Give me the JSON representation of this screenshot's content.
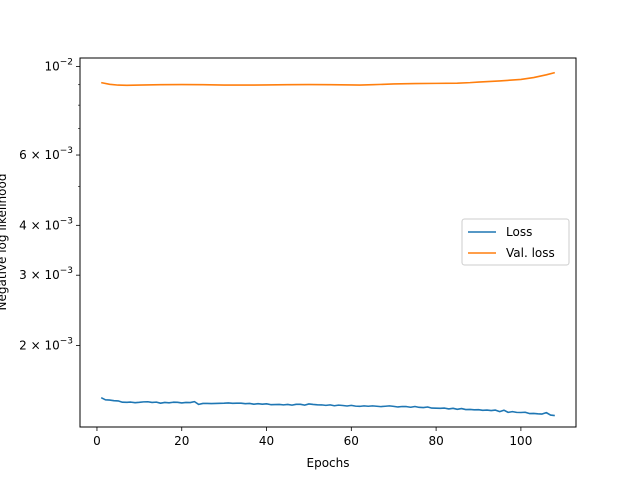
{
  "chart_data": {
    "type": "line",
    "title": "",
    "xlabel": "Epochs",
    "ylabel": "Negative log likelihood",
    "yscale": "log",
    "xlim": [
      -4,
      113
    ],
    "ylim": [
      0.00125,
      0.0105
    ],
    "grid": false,
    "legend_position": "center-right",
    "x_ticks": [
      {
        "value": 0,
        "label": "0"
      },
      {
        "value": 20,
        "label": "20"
      },
      {
        "value": 40,
        "label": "40"
      },
      {
        "value": 60,
        "label": "60"
      },
      {
        "value": 80,
        "label": "80"
      },
      {
        "value": 100,
        "label": "100"
      }
    ],
    "y_ticks": [
      {
        "value": 0.01,
        "mantissa": "10",
        "exponent": "−2"
      },
      {
        "value": 0.006,
        "mantissa": "6 × 10",
        "exponent": "−3"
      },
      {
        "value": 0.004,
        "mantissa": "4 × 10",
        "exponent": "−3"
      },
      {
        "value": 0.003,
        "mantissa": "3 × 10",
        "exponent": "−3"
      },
      {
        "value": 0.002,
        "mantissa": "2 × 10",
        "exponent": "−3"
      }
    ],
    "y_minor_ticks": [
      0.005,
      0.007,
      0.008,
      0.009
    ],
    "series": [
      {
        "name": "Loss",
        "color": "#1f77b4",
        "x": [
          1,
          2,
          3,
          4,
          5,
          6,
          7,
          8,
          9,
          10,
          11,
          12,
          13,
          14,
          15,
          16,
          17,
          18,
          19,
          20,
          21,
          22,
          23,
          24,
          25,
          26,
          27,
          28,
          29,
          30,
          31,
          32,
          33,
          34,
          35,
          36,
          37,
          38,
          39,
          40,
          41,
          42,
          43,
          44,
          45,
          46,
          47,
          48,
          49,
          50,
          51,
          52,
          53,
          54,
          55,
          56,
          57,
          58,
          59,
          60,
          61,
          62,
          63,
          64,
          65,
          66,
          67,
          68,
          69,
          70,
          71,
          72,
          73,
          74,
          75,
          76,
          77,
          78,
          79,
          80,
          81,
          82,
          83,
          84,
          85,
          86,
          87,
          88,
          89,
          90,
          91,
          92,
          93,
          94,
          95,
          96,
          97,
          98,
          99,
          100,
          101,
          102,
          103,
          104,
          105,
          106,
          107,
          108
        ],
        "values": [
          0.00148,
          0.001462,
          0.00146,
          0.001455,
          0.001453,
          0.001442,
          0.001441,
          0.001443,
          0.001438,
          0.001441,
          0.001445,
          0.001446,
          0.00144,
          0.001443,
          0.001434,
          0.00144,
          0.001437,
          0.001442,
          0.001441,
          0.001436,
          0.00144,
          0.001439,
          0.001447,
          0.001424,
          0.001432,
          0.001432,
          0.001431,
          0.001432,
          0.001433,
          0.001434,
          0.001436,
          0.001433,
          0.001434,
          0.001434,
          0.00143,
          0.001432,
          0.001426,
          0.00143,
          0.001426,
          0.001429,
          0.001422,
          0.001423,
          0.001424,
          0.00142,
          0.001424,
          0.001418,
          0.001425,
          0.001425,
          0.001418,
          0.001428,
          0.001424,
          0.001421,
          0.00142,
          0.001416,
          0.00142,
          0.001413,
          0.001418,
          0.001415,
          0.001411,
          0.001416,
          0.00141,
          0.001408,
          0.001412,
          0.001409,
          0.001412,
          0.001409,
          0.001406,
          0.001409,
          0.001412,
          0.001408,
          0.001403,
          0.001407,
          0.001406,
          0.001401,
          0.001407,
          0.0014,
          0.001398,
          0.001403,
          0.001394,
          0.001393,
          0.001392,
          0.001394,
          0.001387,
          0.001392,
          0.001384,
          0.00139,
          0.001382,
          0.001383,
          0.00138,
          0.001381,
          0.001376,
          0.001378,
          0.001374,
          0.001378,
          0.001366,
          0.001377,
          0.00136,
          0.001366,
          0.00136,
          0.001359,
          0.001361,
          0.001351,
          0.001352,
          0.001349,
          0.001347,
          0.001358,
          0.001339,
          0.001335
        ]
      },
      {
        "name": "Val. loss",
        "color": "#ff7f0e",
        "x": [
          1,
          3,
          5,
          7,
          10,
          15,
          20,
          25,
          30,
          35,
          40,
          45,
          50,
          55,
          60,
          62,
          65,
          70,
          75,
          80,
          85,
          88,
          90,
          95,
          100,
          103,
          106,
          108
        ],
        "values": [
          0.00911,
          0.00902,
          0.00898,
          0.00897,
          0.00898,
          0.009,
          0.00901,
          0.009,
          0.00898,
          0.00898,
          0.00899,
          0.009,
          0.00901,
          0.009,
          0.00899,
          0.00898,
          0.009,
          0.00904,
          0.00906,
          0.00907,
          0.00908,
          0.00911,
          0.00914,
          0.0092,
          0.00928,
          0.00938,
          0.00953,
          0.00965
        ]
      }
    ]
  }
}
